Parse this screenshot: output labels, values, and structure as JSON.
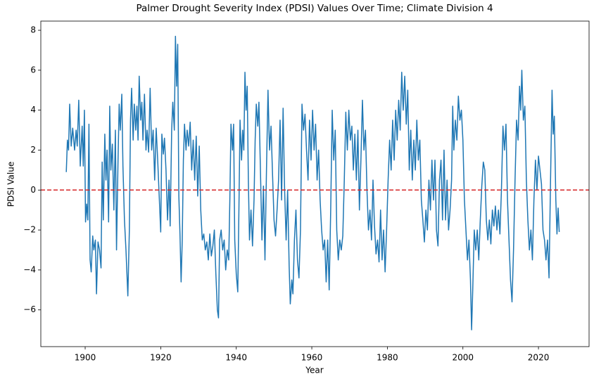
{
  "chart_data": {
    "type": "line",
    "title": "Palmer Drought Severity Index (PDSI) Values Over Time; Climate Division 4",
    "xlabel": "Year",
    "ylabel": "PDSI Value",
    "color": "#1f77b4",
    "hline": {
      "y": 0,
      "color": "#d62728",
      "dashed": true
    },
    "xlim": [
      1888.26,
      2033.4
    ],
    "ylim": [
      -7.84,
      8.46
    ],
    "xticks": [
      1900,
      1920,
      1940,
      1960,
      1980,
      2000,
      2020
    ],
    "yticks": [
      {
        "value": -6,
        "label": "−6"
      },
      {
        "value": -4,
        "label": "−4"
      },
      {
        "value": -2,
        "label": "−2"
      },
      0,
      2,
      4,
      6,
      8
    ],
    "x": [
      1895.0,
      1895.3,
      1895.6,
      1895.9,
      1896.3,
      1896.7,
      1897.2,
      1897.6,
      1897.9,
      1898.3,
      1898.7,
      1899.2,
      1899.5,
      1899.8,
      1900.1,
      1900.4,
      1900.7,
      1901.0,
      1901.3,
      1901.6,
      1902.0,
      1902.3,
      1902.7,
      1903.0,
      1903.4,
      1903.8,
      1904.2,
      1904.5,
      1904.8,
      1905.2,
      1905.5,
      1905.8,
      1906.2,
      1906.5,
      1906.8,
      1907.2,
      1907.6,
      1908.0,
      1908.3,
      1908.7,
      1909.0,
      1909.3,
      1909.7,
      1910.0,
      1910.4,
      1910.8,
      1911.3,
      1911.7,
      1912.0,
      1912.3,
      1912.7,
      1913.0,
      1913.4,
      1913.7,
      1914.0,
      1914.3,
      1914.7,
      1915.0,
      1915.3,
      1915.7,
      1916.1,
      1916.4,
      1916.8,
      1917.2,
      1917.6,
      1918.0,
      1918.4,
      1918.8,
      1919.2,
      1919.6,
      1920.0,
      1920.3,
      1920.7,
      1921.0,
      1921.4,
      1921.8,
      1922.2,
      1922.5,
      1922.9,
      1923.2,
      1923.6,
      1923.9,
      1924.2,
      1924.5,
      1924.8,
      1925.1,
      1925.4,
      1925.7,
      1926.0,
      1926.3,
      1926.7,
      1927.0,
      1927.4,
      1927.8,
      1928.2,
      1928.6,
      1929.0,
      1929.4,
      1929.8,
      1930.2,
      1930.6,
      1931.0,
      1931.4,
      1931.8,
      1932.2,
      1932.6,
      1933.0,
      1933.4,
      1933.8,
      1934.2,
      1934.6,
      1935.0,
      1935.3,
      1935.6,
      1936.0,
      1936.4,
      1936.8,
      1937.2,
      1937.6,
      1938.0,
      1938.3,
      1938.6,
      1939.0,
      1939.3,
      1939.6,
      1940.0,
      1940.4,
      1940.7,
      1941.0,
      1941.4,
      1941.7,
      1942.0,
      1942.3,
      1942.6,
      1942.9,
      1943.2,
      1943.5,
      1943.9,
      1944.3,
      1944.7,
      1945.0,
      1945.3,
      1945.7,
      1946.0,
      1946.4,
      1946.8,
      1947.2,
      1947.6,
      1948.0,
      1948.4,
      1948.8,
      1949.2,
      1949.6,
      1950.0,
      1950.4,
      1950.8,
      1951.2,
      1951.6,
      1952.0,
      1952.4,
      1952.8,
      1953.2,
      1953.6,
      1954.0,
      1954.3,
      1954.7,
      1955.0,
      1955.4,
      1955.8,
      1956.2,
      1956.6,
      1957.0,
      1957.4,
      1957.8,
      1958.2,
      1958.6,
      1959.0,
      1959.4,
      1959.8,
      1960.2,
      1960.6,
      1961.0,
      1961.4,
      1961.8,
      1962.2,
      1962.6,
      1963.0,
      1963.4,
      1963.8,
      1964.2,
      1964.6,
      1965.0,
      1965.4,
      1965.8,
      1966.2,
      1966.6,
      1967.0,
      1967.4,
      1967.8,
      1968.2,
      1968.6,
      1969.0,
      1969.4,
      1969.8,
      1970.2,
      1970.6,
      1971.0,
      1971.4,
      1971.8,
      1972.2,
      1972.6,
      1973.0,
      1973.4,
      1973.8,
      1974.2,
      1974.6,
      1975.0,
      1975.4,
      1975.8,
      1976.2,
      1976.6,
      1977.0,
      1977.4,
      1977.8,
      1978.2,
      1978.6,
      1979.0,
      1979.4,
      1979.8,
      1980.2,
      1980.6,
      1981.0,
      1981.4,
      1981.8,
      1982.2,
      1982.6,
      1983.0,
      1983.4,
      1983.8,
      1984.2,
      1984.6,
      1985.0,
      1985.4,
      1985.8,
      1986.2,
      1986.6,
      1987.0,
      1987.4,
      1987.8,
      1988.2,
      1988.6,
      1989.0,
      1989.4,
      1989.8,
      1990.2,
      1990.6,
      1991.0,
      1991.4,
      1991.8,
      1992.2,
      1992.6,
      1993.0,
      1993.4,
      1993.8,
      1994.2,
      1994.6,
      1995.0,
      1995.4,
      1995.8,
      1996.2,
      1996.6,
      1997.0,
      1997.3,
      1997.6,
      1998.0,
      1998.4,
      1998.8,
      1999.2,
      1999.6,
      2000.0,
      2000.4,
      2000.8,
      2001.2,
      2001.6,
      2002.0,
      2002.3,
      2002.6,
      2003.0,
      2003.4,
      2003.8,
      2004.2,
      2004.6,
      2005.0,
      2005.4,
      2005.8,
      2006.2,
      2006.6,
      2007.0,
      2007.4,
      2007.8,
      2008.2,
      2008.6,
      2009.0,
      2009.4,
      2009.8,
      2010.2,
      2010.6,
      2011.0,
      2011.4,
      2011.8,
      2012.2,
      2012.6,
      2013.0,
      2013.4,
      2013.8,
      2014.2,
      2014.6,
      2015.0,
      2015.3,
      2015.6,
      2016.0,
      2016.4,
      2016.8,
      2017.2,
      2017.6,
      2018.0,
      2018.4,
      2018.8,
      2019.2,
      2019.6,
      2020.0,
      2020.4,
      2020.8,
      2021.2,
      2021.6,
      2022.0,
      2022.4,
      2022.8,
      2023.2,
      2023.6,
      2023.9,
      2024.2,
      2024.6,
      2024.9,
      2025.2,
      2025.5
    ],
    "values": [
      0.9,
      2.5,
      2.0,
      4.3,
      2.2,
      3.1,
      2.0,
      3.0,
      2.2,
      4.5,
      1.2,
      3.2,
      1.2,
      4.0,
      -1.6,
      -0.7,
      -1.5,
      3.3,
      -3.5,
      -4.1,
      -2.3,
      -3.0,
      -2.5,
      -5.2,
      -2.6,
      -3.0,
      -3.9,
      1.4,
      -1.5,
      2.8,
      0.5,
      2.0,
      -1.6,
      4.2,
      1.0,
      2.3,
      -1.0,
      3.0,
      -3.0,
      1.5,
      4.3,
      3.0,
      4.8,
      1.2,
      -1.5,
      -3.0,
      -5.3,
      -2.0,
      3.5,
      5.1,
      2.5,
      4.3,
      3.0,
      4.2,
      2.5,
      5.7,
      3.5,
      4.4,
      2.5,
      4.8,
      2.0,
      3.0,
      1.9,
      5.1,
      2.0,
      3.0,
      0.5,
      3.1,
      1.5,
      -0.3,
      -2.1,
      2.8,
      1.8,
      2.6,
      1.0,
      -1.5,
      0.5,
      -1.8,
      3.0,
      4.4,
      3.0,
      7.7,
      5.2,
      7.3,
      -0.3,
      -2.2,
      -4.6,
      -2.5,
      1.5,
      3.3,
      2.0,
      3.0,
      2.2,
      3.4,
      1.0,
      2.5,
      0.5,
      2.7,
      -0.3,
      2.2,
      -1.0,
      -2.5,
      -2.2,
      -3.0,
      -2.6,
      -3.5,
      -2.2,
      -3.3,
      -2.8,
      -2.0,
      -4.2,
      -6.0,
      -6.4,
      -2.5,
      -2.0,
      -3.0,
      -2.5,
      -4.0,
      -3.0,
      -3.5,
      -0.5,
      3.3,
      2.0,
      3.3,
      -2.5,
      -4.2,
      -5.1,
      -1.0,
      3.5,
      1.5,
      3.0,
      2.0,
      5.9,
      4.0,
      5.2,
      0.5,
      -2.5,
      -1.0,
      -2.8,
      -0.5,
      2.5,
      4.3,
      3.2,
      4.4,
      1.0,
      -2.5,
      0.2,
      -3.5,
      1.0,
      5.0,
      2.0,
      3.2,
      0.8,
      -1.5,
      -2.3,
      -1.0,
      0.5,
      3.5,
      -0.5,
      4.1,
      0.0,
      -2.5,
      0.0,
      -3.8,
      -5.7,
      -4.5,
      -5.2,
      -2.5,
      -1.0,
      -3.5,
      -4.4,
      -2.0,
      4.3,
      3.0,
      3.8,
      2.0,
      0.5,
      3.5,
      1.5,
      4.0,
      2.0,
      3.3,
      0.5,
      2.0,
      -0.5,
      -2.0,
      -3.0,
      -2.5,
      -4.6,
      -2.5,
      -5.0,
      -1.0,
      4.0,
      1.5,
      3.0,
      -2.0,
      -3.5,
      -2.5,
      -3.0,
      -2.3,
      0.5,
      3.9,
      2.0,
      4.0,
      2.5,
      3.2,
      1.0,
      2.8,
      0.5,
      3.0,
      -1.0,
      1.5,
      4.5,
      2.0,
      3.0,
      0.0,
      -2.0,
      -1.0,
      -2.5,
      0.5,
      -1.8,
      -3.2,
      -2.5,
      -3.6,
      -1.0,
      -3.5,
      -2.0,
      -4.1,
      -2.0,
      0.5,
      2.5,
      1.0,
      3.5,
      1.5,
      4.0,
      2.5,
      4.5,
      3.0,
      5.9,
      4.0,
      5.7,
      3.3,
      5.0,
      1.0,
      3.0,
      0.5,
      2.5,
      1.0,
      3.5,
      1.5,
      2.5,
      -0.5,
      -1.5,
      -2.6,
      -1.0,
      -2.0,
      0.5,
      -1.0,
      1.5,
      -0.5,
      1.5,
      -2.0,
      -2.8,
      0.5,
      1.5,
      -1.5,
      2.0,
      -1.5,
      0.5,
      -2.0,
      -1.0,
      0.5,
      4.2,
      2.0,
      3.5,
      2.5,
      4.7,
      3.5,
      4.0,
      2.5,
      -0.5,
      -2.0,
      -3.5,
      -2.5,
      -4.5,
      -7.0,
      -5.0,
      -2.0,
      -3.0,
      -2.0,
      -3.5,
      -1.5,
      0.2,
      1.4,
      1.0,
      -1.5,
      -2.5,
      -1.5,
      -2.7,
      -1.0,
      -1.8,
      -0.8,
      -2.0,
      -1.0,
      -2.2,
      0.0,
      3.2,
      2.0,
      3.3,
      -0.5,
      -2.5,
      -4.5,
      -5.6,
      -3.0,
      0.5,
      3.5,
      2.5,
      5.2,
      4.0,
      6.0,
      3.5,
      4.2,
      0.5,
      -1.5,
      -3.0,
      -2.0,
      -3.5,
      -0.5,
      1.5,
      0.0,
      1.7,
      1.0,
      0.3,
      -2.0,
      -2.5,
      -3.5,
      -2.5,
      -4.4,
      0.5,
      5.0,
      2.8,
      3.7,
      -0.5,
      -2.2,
      -0.9,
      -2.1
    ]
  }
}
